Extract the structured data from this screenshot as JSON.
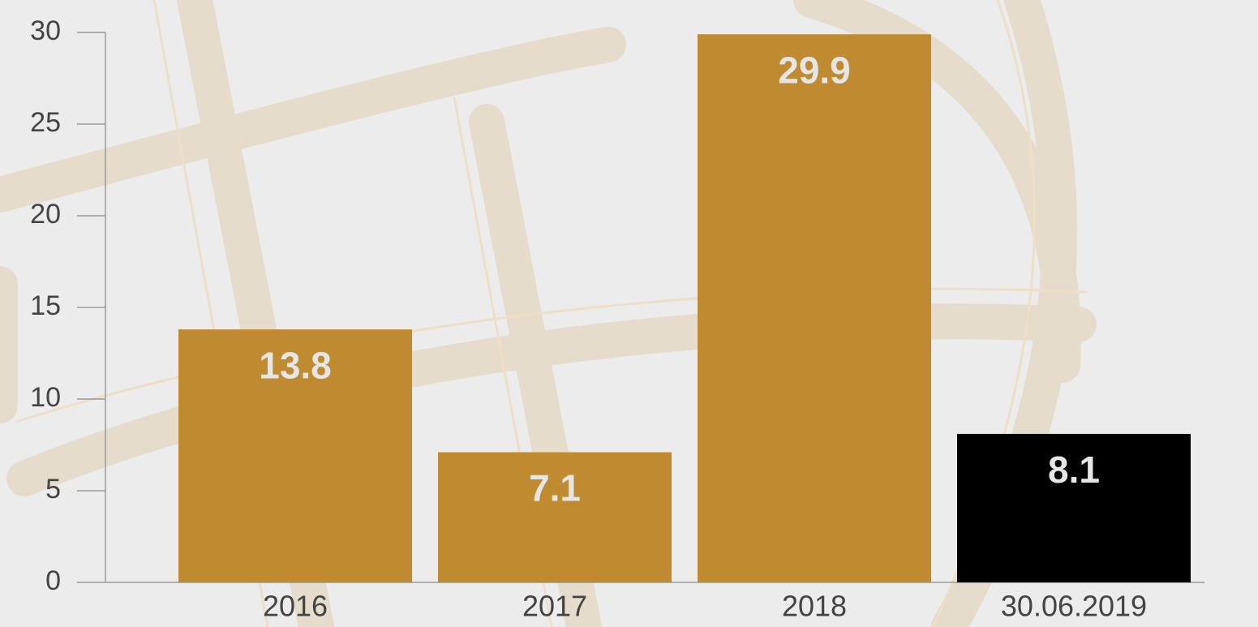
{
  "chart_data": {
    "type": "bar",
    "categories": [
      "2016",
      "2017",
      "2018",
      "30.06.2019"
    ],
    "values": [
      13.8,
      7.1,
      29.9,
      8.1
    ],
    "colors": [
      "#bf8a30",
      "#bf8a30",
      "#bf8a30",
      "#000000"
    ],
    "ylim": [
      0,
      30
    ],
    "yticks": [
      0,
      5,
      10,
      15,
      20,
      25,
      30
    ]
  }
}
